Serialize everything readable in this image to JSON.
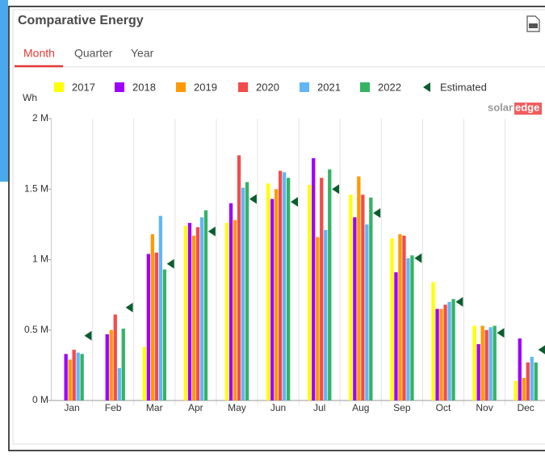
{
  "widget": {
    "title": "Comparative Energy",
    "tabs": [
      "Month",
      "Quarter",
      "Year"
    ],
    "logo": [
      "solar",
      "edge"
    ]
  },
  "chart_data": {
    "type": "bar",
    "y_label": "Wh",
    "categories": [
      "Jan",
      "Feb",
      "Mar",
      "Apr",
      "May",
      "Jun",
      "Jul",
      "Aug",
      "Sep",
      "Oct",
      "Nov",
      "Dec"
    ],
    "ylim": [
      0,
      2
    ],
    "yticks": [
      {
        "value": 0,
        "label": "0 M"
      },
      {
        "value": 0.5,
        "label": "0.5 M"
      },
      {
        "value": 1,
        "label": "1 M"
      },
      {
        "value": 1.5,
        "label": "1.5 M"
      },
      {
        "value": 2,
        "label": "2 M"
      }
    ],
    "series": [
      {
        "name": "2017",
        "color": "#ffff00",
        "values": [
          null,
          null,
          0.38,
          1.24,
          1.26,
          1.54,
          1.53,
          1.46,
          1.15,
          0.84,
          0.53,
          0.14
        ]
      },
      {
        "name": "2018",
        "color": "#9d00ff",
        "values": [
          0.33,
          0.47,
          1.04,
          1.26,
          1.4,
          1.43,
          1.72,
          1.3,
          0.91,
          0.65,
          0.4,
          0.44
        ]
      },
      {
        "name": "2019",
        "color": "#ff9900",
        "values": [
          0.29,
          0.5,
          1.18,
          1.17,
          1.28,
          1.5,
          1.16,
          1.59,
          1.18,
          0.65,
          0.53,
          0.16
        ]
      },
      {
        "name": "2020",
        "color": "#f44b4b",
        "values": [
          0.36,
          0.61,
          1.05,
          1.23,
          1.74,
          1.63,
          1.58,
          1.46,
          1.17,
          0.68,
          0.5,
          0.27
        ]
      },
      {
        "name": "2021",
        "color": "#62b6f5",
        "values": [
          0.34,
          0.23,
          1.31,
          1.3,
          1.51,
          1.62,
          1.21,
          1.25,
          1.01,
          0.7,
          0.52,
          0.31
        ]
      },
      {
        "name": "2022",
        "color": "#34b365",
        "values": [
          0.33,
          0.51,
          0.93,
          1.35,
          1.55,
          1.58,
          1.64,
          1.44,
          1.03,
          0.72,
          0.53,
          0.27
        ]
      },
      {
        "name": "Estimated",
        "color": "#0b5d2e",
        "marker": "triangle",
        "values": [
          0.46,
          0.66,
          0.97,
          1.2,
          1.43,
          1.41,
          1.5,
          1.33,
          1.01,
          0.7,
          0.48,
          0.36
        ]
      }
    ]
  }
}
